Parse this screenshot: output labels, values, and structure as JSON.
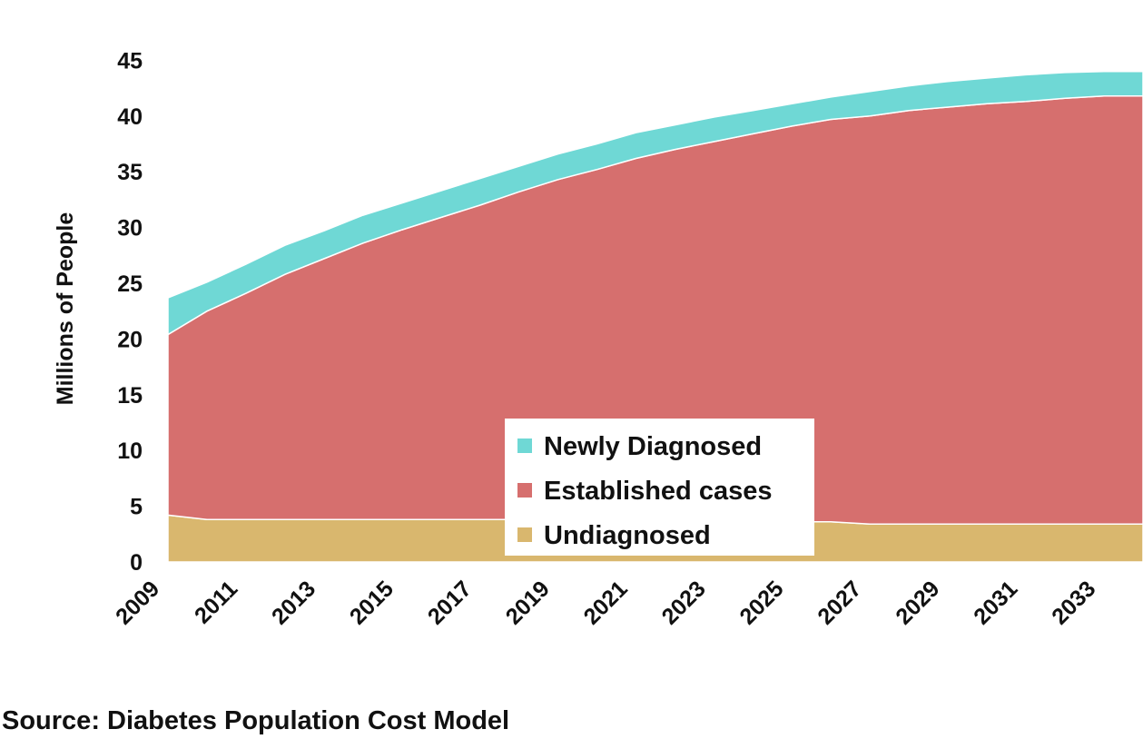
{
  "source_note": "Source: Diabetes Population Cost Model",
  "colors": {
    "Undiagnosed": "#d9b76e",
    "Established cases": "#d66f6e",
    "Newly Diagnosed": "#6fd8d5"
  },
  "chart_data": {
    "type": "area",
    "stacked": true,
    "title": "",
    "xlabel": "",
    "ylabel": "Millions of People",
    "ylim": [
      0,
      50
    ],
    "yticks": [
      0,
      5,
      10,
      15,
      20,
      25,
      30,
      35,
      40,
      45
    ],
    "xticks": [
      "2009",
      "2011",
      "2013",
      "2015",
      "2017",
      "2019",
      "2021",
      "2023",
      "2025",
      "2027",
      "2029",
      "2031",
      "2033"
    ],
    "x": [
      2009,
      2010,
      2011,
      2012,
      2013,
      2014,
      2015,
      2016,
      2017,
      2018,
      2019,
      2020,
      2021,
      2022,
      2023,
      2024,
      2025,
      2026,
      2027,
      2028,
      2029,
      2030,
      2031,
      2032,
      2033,
      2034
    ],
    "series": [
      {
        "name": "Undiagnosed",
        "values": [
          4.2,
          3.8,
          3.8,
          3.8,
          3.8,
          3.8,
          3.8,
          3.8,
          3.8,
          3.8,
          3.8,
          3.8,
          3.8,
          3.8,
          3.8,
          3.8,
          3.6,
          3.6,
          3.4,
          3.4,
          3.4,
          3.4,
          3.4,
          3.4,
          3.4,
          3.4
        ]
      },
      {
        "name": "Established cases",
        "values": [
          16.2,
          18.7,
          20.3,
          22.0,
          23.4,
          24.8,
          26.0,
          27.1,
          28.2,
          29.4,
          30.5,
          31.4,
          32.4,
          33.2,
          33.9,
          34.6,
          35.5,
          36.1,
          36.6,
          37.1,
          37.4,
          37.7,
          37.9,
          38.2,
          38.4,
          38.4
        ]
      },
      {
        "name": "Newly Diagnosed",
        "values": [
          3.3,
          2.6,
          2.6,
          2.6,
          2.5,
          2.5,
          2.4,
          2.4,
          2.4,
          2.3,
          2.3,
          2.3,
          2.3,
          2.2,
          2.2,
          2.1,
          2.0,
          2.0,
          2.2,
          2.2,
          2.3,
          2.3,
          2.4,
          2.3,
          2.2,
          2.2
        ]
      }
    ],
    "legend": {
      "position": "bottom-center",
      "entries": [
        "Newly Diagnosed",
        "Established cases",
        "Undiagnosed"
      ]
    },
    "grid": false
  }
}
